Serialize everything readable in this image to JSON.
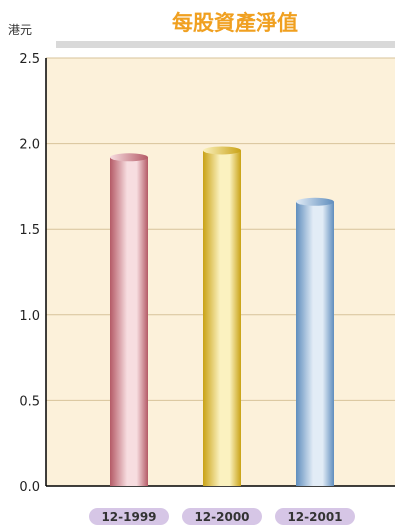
{
  "chart_data": {
    "type": "bar",
    "title": "每股資產淨值",
    "ylabel": "港元",
    "xlabel": "",
    "categories": [
      "12-1999",
      "12-2000",
      "12-2001"
    ],
    "values": [
      1.92,
      1.96,
      1.66
    ],
    "ylim": [
      0,
      2.5
    ],
    "yticks": [
      "0.0",
      "0.5",
      "1.0",
      "1.5",
      "2.0",
      "2.5"
    ],
    "grid": true,
    "legend": "none"
  },
  "colors": {
    "title": "#f0a020",
    "plot_bg": "#fcf1da",
    "grid": "#d7c39a",
    "bars": [
      {
        "dark": "#b45a66",
        "light": "#f7dde0"
      },
      {
        "dark": "#c9a215",
        "light": "#fbf2c0"
      },
      {
        "dark": "#5f8dbd",
        "light": "#e2ecf6"
      }
    ],
    "label_pill": "#d6c6e6"
  }
}
